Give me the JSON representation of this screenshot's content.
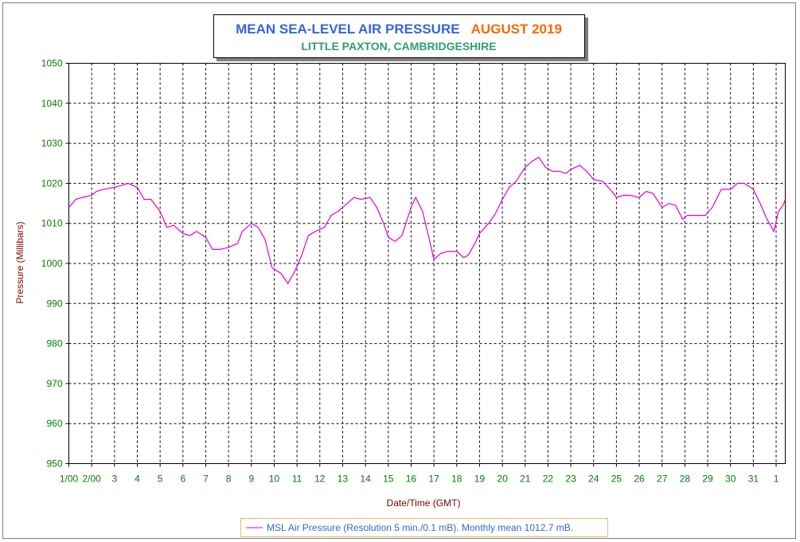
{
  "chart_data": {
    "type": "line",
    "title": "MEAN SEA-LEVEL AIR PRESSURE",
    "title_date": "AUGUST 2019",
    "subtitle": "LITTLE PAXTON, CAMBRIDGESHIRE",
    "x_label": "Date/Time (GMT)",
    "y_label": "Pressure (Millibars)",
    "x": [
      0,
      0.3,
      0.6,
      1.0,
      1.2,
      1.5,
      2.0,
      2.3,
      2.6,
      3.0,
      3.3,
      3.6,
      4.0,
      4.3,
      4.6,
      5.0,
      5.3,
      5.6,
      6.0,
      6.3,
      6.6,
      7.0,
      7.4,
      7.6,
      8.0,
      8.3,
      8.6,
      8.9,
      9.3,
      9.6,
      9.9,
      10.2,
      10.5,
      10.8,
      11.2,
      11.5,
      11.8,
      12.2,
      12.5,
      12.8,
      13.2,
      13.5,
      13.8,
      14.0,
      14.3,
      14.6,
      15.0,
      15.2,
      15.5,
      15.8,
      16.0,
      16.3,
      16.6,
      17.0,
      17.3,
      17.5,
      17.8,
      18.0,
      18.4,
      18.7,
      19.0,
      19.3,
      19.6,
      20.0,
      20.3,
      20.6,
      20.9,
      21.2,
      21.5,
      21.8,
      22.0,
      22.4,
      22.7,
      23.0,
      23.4,
      23.8,
      24.0,
      24.3,
      24.6,
      25.0,
      25.3,
      25.6,
      26.0,
      26.3,
      26.6,
      26.9,
      27.1,
      27.5,
      27.9,
      28.2,
      28.6,
      29.0,
      29.3,
      29.6,
      30.0,
      30.3,
      30.6,
      30.9,
      31.1,
      31.3,
      31.4
    ],
    "series": [
      {
        "name": "MSL Air Pressure (Resolution 5 min./0.1 mB). Monthly mean 1012.7 mB.",
        "color": "#e000e0",
        "values": [
          1014,
          1016,
          1016.5,
          1017,
          1018,
          1018.5,
          1019,
          1019.5,
          1020,
          1019,
          1016,
          1016,
          1013,
          1009,
          1009.5,
          1007.5,
          1007,
          1008,
          1006.5,
          1003.5,
          1003.5,
          1004,
          1005,
          1008,
          1010,
          1009,
          1006,
          999,
          997.5,
          995,
          998,
          1002,
          1007,
          1008,
          1009,
          1012,
          1013,
          1015,
          1016.5,
          1016,
          1016.5,
          1014,
          1010,
          1006.5,
          1005.5,
          1007,
          1014,
          1016.5,
          1013,
          1006,
          1001,
          1002.5,
          1003,
          1003,
          1001.5,
          1002,
          1005,
          1007.5,
          1010,
          1012.5,
          1016,
          1019,
          1020.5,
          1024,
          1025.5,
          1026.5,
          1024,
          1023,
          1023,
          1022.5,
          1023.5,
          1024.5,
          1023,
          1021,
          1020.5,
          1018,
          1016.5,
          1017,
          1017,
          1016.5,
          1018,
          1017.5,
          1014,
          1015,
          1014.5,
          1011,
          1012,
          1012,
          1012,
          1014,
          1018.5,
          1018.5,
          1020,
          1020,
          1018.5,
          1015,
          1011,
          1008,
          1013,
          1014.5,
          1016
        ]
      }
    ],
    "xlim": [
      0,
      31.4
    ],
    "xticks": [
      {
        "value": 0,
        "label": "1/00"
      },
      {
        "value": 1,
        "label": "2/00"
      },
      {
        "value": 2,
        "label": "3"
      },
      {
        "value": 3,
        "label": "4"
      },
      {
        "value": 4,
        "label": "5"
      },
      {
        "value": 5,
        "label": "6"
      },
      {
        "value": 6,
        "label": "7"
      },
      {
        "value": 7,
        "label": "8"
      },
      {
        "value": 8,
        "label": "9"
      },
      {
        "value": 9,
        "label": "10"
      },
      {
        "value": 10,
        "label": "11"
      },
      {
        "value": 11,
        "label": "12"
      },
      {
        "value": 12,
        "label": "13"
      },
      {
        "value": 13,
        "label": "14"
      },
      {
        "value": 14,
        "label": "15"
      },
      {
        "value": 15,
        "label": "16"
      },
      {
        "value": 16,
        "label": "17"
      },
      {
        "value": 17,
        "label": "18"
      },
      {
        "value": 18,
        "label": "19"
      },
      {
        "value": 19,
        "label": "20"
      },
      {
        "value": 20,
        "label": "21"
      },
      {
        "value": 21,
        "label": "22"
      },
      {
        "value": 22,
        "label": "23"
      },
      {
        "value": 23,
        "label": "24"
      },
      {
        "value": 24,
        "label": "25"
      },
      {
        "value": 25,
        "label": "26"
      },
      {
        "value": 26,
        "label": "27"
      },
      {
        "value": 27,
        "label": "28"
      },
      {
        "value": 28,
        "label": "29"
      },
      {
        "value": 29,
        "label": "30"
      },
      {
        "value": 30,
        "label": "31"
      },
      {
        "value": 31,
        "label": "1"
      }
    ],
    "ylim": [
      950,
      1050
    ],
    "yticks": [
      950,
      960,
      970,
      980,
      990,
      1000,
      1010,
      1020,
      1030,
      1040,
      1050
    ],
    "grid": true
  }
}
